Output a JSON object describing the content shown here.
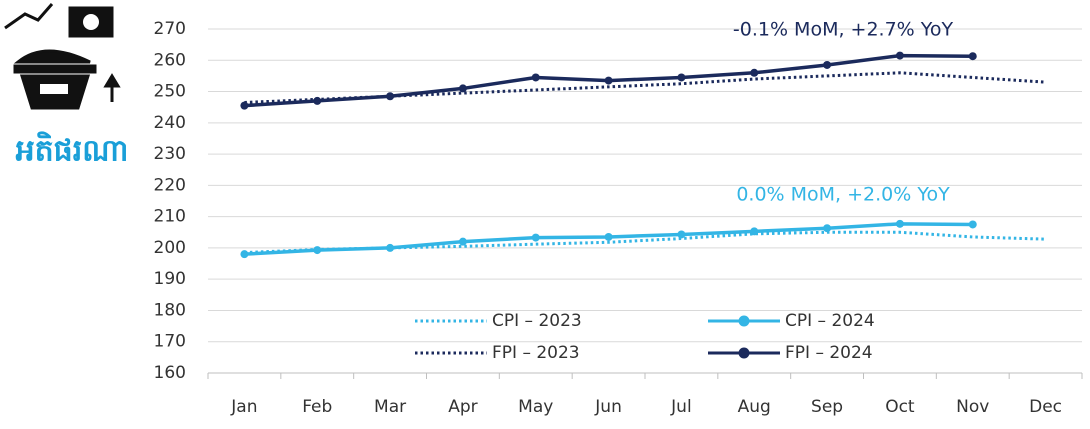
{
  "chart_data": {
    "type": "line",
    "side_label": "អតិផរណា",
    "categories": [
      "Jan",
      "Feb",
      "Mar",
      "Apr",
      "May",
      "Jun",
      "Jul",
      "Aug",
      "Sep",
      "Oct",
      "Nov",
      "Dec"
    ],
    "series": [
      {
        "name": "CPI – 2023",
        "color": "#33b5e5",
        "dash": "dotted",
        "values": [
          198.5,
          199.5,
          200,
          200.5,
          201.2,
          201.8,
          203,
          204.5,
          205,
          205,
          203.5,
          202.8
        ]
      },
      {
        "name": "CPI – 2024",
        "color": "#33b5e5",
        "dash": "solid",
        "values": [
          198,
          199.3,
          200,
          202,
          203.3,
          203.5,
          204.3,
          205.3,
          206.3,
          207.7,
          207.5,
          null
        ]
      },
      {
        "name": "FPI – 2023",
        "color": "#1b2a5c",
        "dash": "dotted",
        "values": [
          246.5,
          247.5,
          248.5,
          249.5,
          250.5,
          251.5,
          252.5,
          254,
          255,
          256,
          254.5,
          253
        ]
      },
      {
        "name": "FPI – 2024",
        "color": "#1b2a5c",
        "dash": "solid",
        "values": [
          245.5,
          247,
          248.5,
          251,
          254.5,
          253.5,
          254.5,
          256,
          258.5,
          261.5,
          261.3,
          null
        ]
      }
    ],
    "annotations": [
      {
        "text": "-0.1% MoM, +2.7% YoY",
        "color": "#1b2a5c"
      },
      {
        "text": "0.0% MoM, +2.0% YoY",
        "color": "#33b5e5"
      }
    ],
    "ylim": [
      160,
      270
    ],
    "yticks": [
      160,
      170,
      180,
      190,
      200,
      210,
      220,
      230,
      240,
      250,
      260,
      270
    ],
    "grid": true
  }
}
